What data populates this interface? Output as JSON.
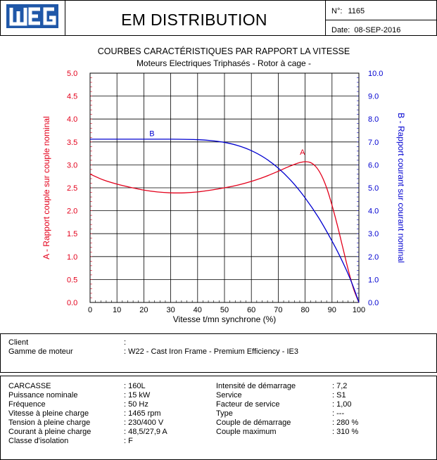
{
  "header": {
    "brand": "WEG",
    "title": "EM DISTRIBUTION",
    "number_label": "N°:",
    "number_value": "1165",
    "date_label": "Date:",
    "date_value": "08-SEP-2016"
  },
  "chart_data": {
    "type": "line",
    "title": "COURBES CARACTÉRISTIQUES PAR RAPPORT LA VITESSE",
    "subtitle": "Moteurs Electriques Triphasés - Rotor à cage -",
    "xlabel": "Vitesse t/mn synchrone (%)",
    "ylabel_left": "A - Rapport couple sur couple nominal",
    "ylabel_right": "B - Rapport courant sur courant nominal",
    "xlim": [
      0,
      100
    ],
    "ylim_left": [
      0,
      5
    ],
    "ylim_right": [
      0,
      10
    ],
    "x_ticks": [
      "0",
      "10",
      "20",
      "30",
      "40",
      "50",
      "60",
      "70",
      "80",
      "90",
      "100"
    ],
    "y_left_ticks": [
      "0.0",
      "0.5",
      "1.0",
      "1.5",
      "2.0",
      "2.5",
      "3.0",
      "3.5",
      "4.0",
      "4.5",
      "5.0"
    ],
    "y_right_ticks": [
      "0.0",
      "1.0",
      "2.0",
      "3.0",
      "4.0",
      "5.0",
      "6.0",
      "7.0",
      "8.0",
      "9.0",
      "10.0"
    ],
    "grid": true,
    "colors": {
      "A": "#e3001b",
      "B": "#0000d0"
    },
    "series": [
      {
        "name": "A",
        "axis": "left",
        "x": [
          0,
          5,
          10,
          15,
          20,
          25,
          30,
          35,
          40,
          45,
          50,
          55,
          60,
          65,
          70,
          73,
          76,
          78,
          80,
          82,
          84,
          86,
          88,
          90,
          92,
          94,
          96,
          98,
          100
        ],
        "y": [
          2.8,
          2.67,
          2.58,
          2.51,
          2.45,
          2.41,
          2.39,
          2.39,
          2.41,
          2.45,
          2.5,
          2.56,
          2.64,
          2.74,
          2.86,
          2.94,
          3.01,
          3.05,
          3.07,
          3.05,
          2.96,
          2.78,
          2.5,
          2.12,
          1.68,
          1.2,
          0.72,
          0.3,
          0.0
        ]
      },
      {
        "name": "B",
        "axis": "right",
        "x": [
          0,
          10,
          20,
          30,
          40,
          45,
          50,
          55,
          60,
          65,
          70,
          75,
          80,
          85,
          90,
          93,
          96,
          98,
          100
        ],
        "y": [
          7.12,
          7.12,
          7.12,
          7.12,
          7.1,
          7.06,
          6.98,
          6.84,
          6.62,
          6.3,
          5.86,
          5.28,
          4.56,
          3.7,
          2.68,
          2.0,
          1.24,
          0.66,
          0.0
        ]
      }
    ],
    "annotations": [
      {
        "text": "A",
        "x": 79,
        "y": 3.22,
        "axis": "left"
      },
      {
        "text": "B",
        "x": 23,
        "y": 7.25,
        "axis": "right"
      }
    ]
  },
  "client": {
    "rows": [
      {
        "label": "Client",
        "value": ":"
      },
      {
        "label": "Gamme de moteur",
        "value": ": W22 - Cast Iron Frame - Premium Efficiency - IE3"
      }
    ]
  },
  "specs": {
    "left": [
      {
        "label": "CARCASSE",
        "value": ": 160L"
      },
      {
        "label": "Puissance nominale",
        "value": ": 15 kW"
      },
      {
        "label": "Fréquence",
        "value": ": 50 Hz"
      },
      {
        "label": "Vitesse à pleine charge",
        "value": ": 1465 rpm"
      },
      {
        "label": "Tension à pleine charge",
        "value": ": 230/400 V"
      },
      {
        "label": "Courant à pleine charge",
        "value": ": 48,5/27,9 A"
      },
      {
        "label": "Classe d'isolation",
        "value": ": F"
      }
    ],
    "right": [
      {
        "label": "Intensité de démarrage",
        "value": ": 7,2"
      },
      {
        "label": "Service",
        "value": ": S1"
      },
      {
        "label": "Facteur de service",
        "value": ": 1,00"
      },
      {
        "label": "Type",
        "value": ": ---"
      },
      {
        "label": "Couple de démarrage",
        "value": ": 280 %"
      },
      {
        "label": "Couple maximum",
        "value": ": 310 %"
      }
    ]
  }
}
